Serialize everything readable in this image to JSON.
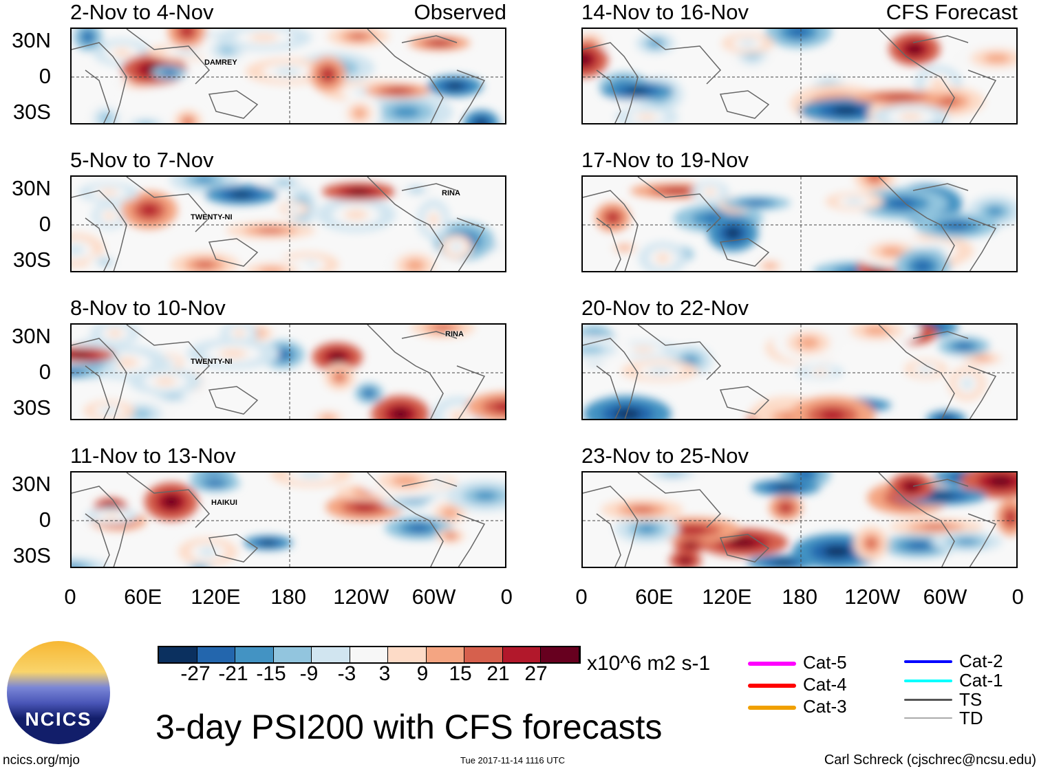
{
  "left_header": "Observed",
  "right_header": "CFS Forecast",
  "panels_left": [
    "2-Nov to 4-Nov",
    "5-Nov to 7-Nov",
    "8-Nov to 10-Nov",
    "11-Nov to 13-Nov"
  ],
  "panels_right": [
    "14-Nov to 16-Nov",
    "17-Nov to 19-Nov",
    "20-Nov to 22-Nov",
    "23-Nov to 25-Nov"
  ],
  "lat_labels": [
    "30N",
    "0",
    "30S"
  ],
  "lon_labels": [
    "0",
    "60E",
    "120E",
    "180",
    "120W",
    "60W",
    "0"
  ],
  "storms": [
    {
      "panel": 0,
      "name": "DAMREY"
    },
    {
      "panel": 1,
      "name": "TWENTY-NI"
    },
    {
      "panel": 1,
      "name": "RINA"
    },
    {
      "panel": 2,
      "name": "TWENTY-NI"
    },
    {
      "panel": 2,
      "name": "RINA"
    },
    {
      "panel": 3,
      "name": "HAIKUI"
    }
  ],
  "chart_data": {
    "type": "heatmap",
    "title": "3-day PSI200 with CFS forecasts",
    "units": "x10^6 m2 s-1",
    "colorbar_ticks": [
      "-27",
      "-21",
      "-15",
      "-9",
      "-3",
      "3",
      "9",
      "15",
      "21",
      "27"
    ],
    "colorbar_colors": [
      "#0b305f",
      "#2366ad",
      "#4393c3",
      "#92c5de",
      "#d1e5f0",
      "#f7f7f7",
      "#fddbc7",
      "#f4a582",
      "#d6604d",
      "#b2182b",
      "#67001f"
    ],
    "legend": [
      {
        "label": "Cat-5",
        "color": "#ff00ff"
      },
      {
        "label": "Cat-4",
        "color": "#ff0000"
      },
      {
        "label": "Cat-3",
        "color": "#f0a000"
      },
      {
        "label": "Cat-2",
        "color": "#0000ff"
      },
      {
        "label": "Cat-1",
        "color": "#00ffff"
      },
      {
        "label": "TS",
        "color": "#555555"
      },
      {
        "label": "TD",
        "color": "#aaaaaa"
      }
    ]
  },
  "footer": {
    "left": "ncics.org/mjo",
    "center": "Tue 2017-11-14 1116 UTC",
    "right": "Carl Schreck (cjschrec@ncsu.edu)",
    "logo": "NCICS"
  }
}
